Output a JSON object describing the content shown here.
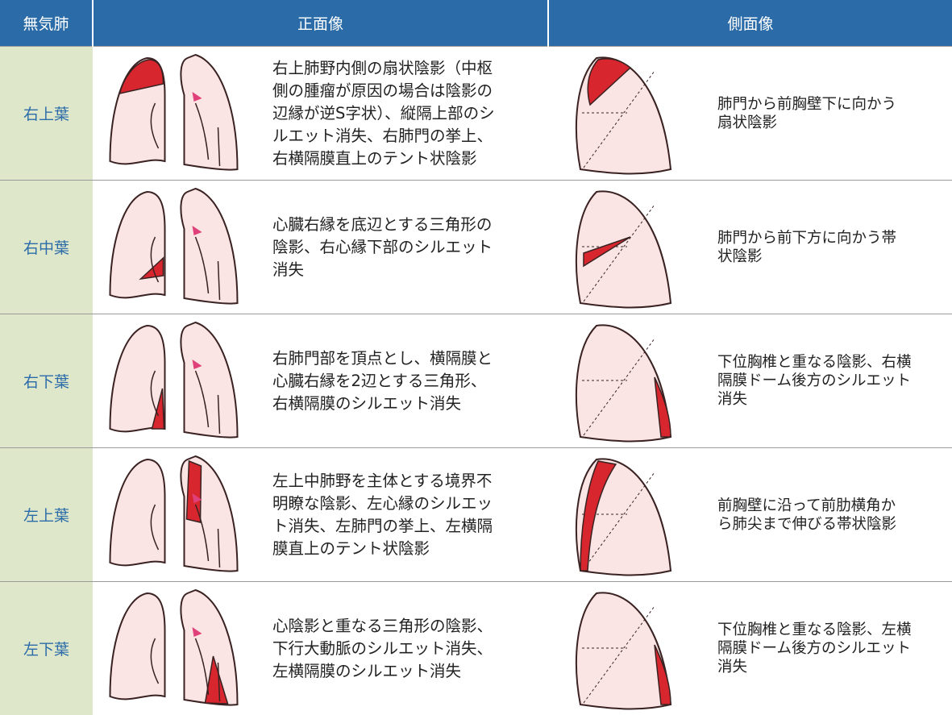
{
  "table": {
    "header": [
      "無気肺",
      "正面像",
      "側面像"
    ],
    "rows": [
      {
        "lobe": "右上葉",
        "front": [
          "右上肺野内側の扇状陰影（中枢",
          "側の腫瘤が原因の場合は陰影の",
          "辺縁が逆S字状）、縦隔上部のシ",
          "ルエット消失、右肺門の挙上、",
          "右横隔膜直上のテント状陰影"
        ],
        "side": [
          "肺門から前胸壁下に向かう",
          "扇状陰影"
        ]
      },
      {
        "lobe": "右中葉",
        "front": [
          "心臓右縁を底辺とする三角形の",
          "陰影、右心縁下部のシルエット",
          "消失"
        ],
        "side": [
          "肺門から前下方に向かう帯",
          "状陰影"
        ]
      },
      {
        "lobe": "右下葉",
        "front": [
          "右肺門部を頂点とし、横隔膜と",
          "心臓右縁を2辺とする三角形、",
          "右横隔膜のシルエット消失"
        ],
        "side": [
          "下位胸椎と重なる陰影、右横",
          "隔膜ドーム後方のシルエット",
          "消失"
        ]
      },
      {
        "lobe": "左上葉",
        "front": [
          "左上中肺野を主体とする境界不",
          "明瞭な陰影、左心縁のシルエッ",
          "ト消失、左肺門の挙上、左横隔",
          "膜直上のテント状陰影"
        ],
        "side": [
          "前胸壁に沿って前肋横角か",
          "ら肺尖まで伸びる帯状陰影"
        ]
      },
      {
        "lobe": "左下葉",
        "front": [
          "心陰影と重なる三角形の陰影、",
          "下行大動脈のシルエット消失、",
          "左横隔膜のシルエット消失"
        ],
        "side": [
          "下位胸椎と重なる陰影、左横",
          "隔膜ドーム後方のシルエット",
          "消失"
        ]
      }
    ]
  }
}
